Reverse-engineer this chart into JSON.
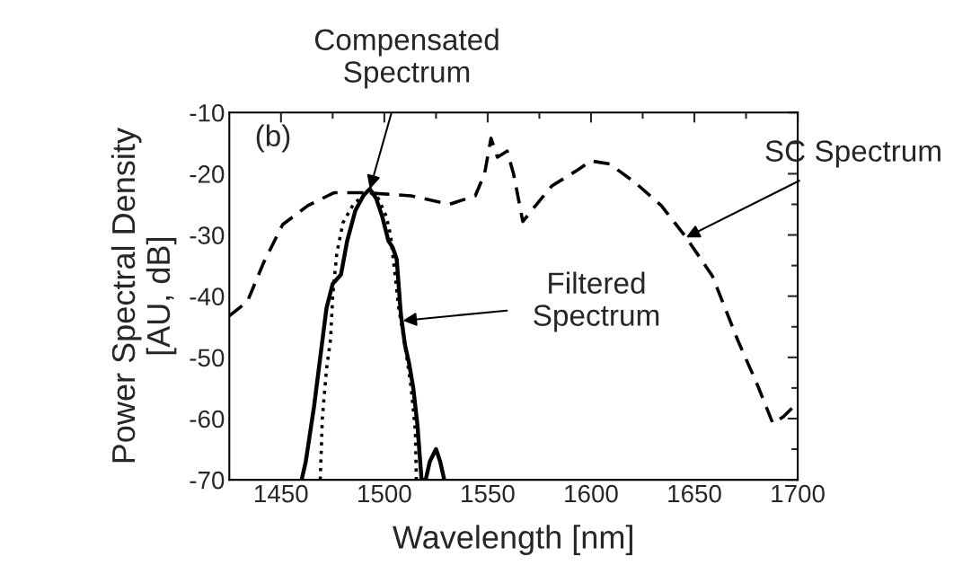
{
  "chart_data": {
    "type": "line",
    "xlabel": "Wavelength [nm]",
    "ylabel": "Power Spectral Density\n[AU, dB]",
    "xlim": [
      1425,
      1700
    ],
    "xticks": [
      1450,
      1500,
      1550,
      1600,
      1650,
      1700
    ],
    "ylim": [
      -70,
      -10
    ],
    "yticks": [
      -70,
      -60,
      -50,
      -40,
      -30,
      -20,
      -10
    ],
    "grid": false,
    "marker": "none",
    "series": [
      {
        "color": "#000000",
        "line_style": "dashed",
        "x": [
          1425,
          1433.7,
          1441.5,
          1450.8,
          1463,
          1475.6,
          1491,
          1512.8,
          1531.5,
          1544,
          1548.5,
          1551.6,
          1554.7,
          1559.4,
          1562.5,
          1567,
          1572,
          1581,
          1593.5,
          1599.8,
          1609,
          1621.5,
          1634,
          1646,
          1658.7,
          1671,
          1680.5,
          1688,
          1693,
          1700
        ],
        "values": [
          -43.2,
          -40.9,
          -34.6,
          -28.3,
          -25.2,
          -23.1,
          -23.1,
          -23.6,
          -25,
          -23.6,
          -20,
          -14.2,
          -17.3,
          -16.3,
          -20,
          -27.8,
          -25.7,
          -22,
          -19.4,
          -17.9,
          -18.4,
          -21.5,
          -25.2,
          -30.4,
          -36.7,
          -47.2,
          -54.5,
          -60.8,
          -59.7,
          -57.4
        ]
      },
      {
        "color": "#000000",
        "line_style": "solid",
        "x": [
          1460,
          1462,
          1466,
          1469,
          1472,
          1475,
          1479,
          1482,
          1486,
          1490,
          1493,
          1496,
          1499,
          1502,
          1504,
          1506,
          1508,
          1510,
          1512,
          1514,
          1516,
          1518,
          1520,
          1522,
          1525,
          1527,
          1529
        ],
        "values": [
          -70,
          -67,
          -58,
          -50,
          -42,
          -38,
          -36.5,
          -31,
          -26,
          -23.5,
          -22.5,
          -24,
          -27,
          -31,
          -32,
          -34,
          -43,
          -48,
          -51,
          -55,
          -61,
          -70,
          -70,
          -67,
          -65,
          -67,
          -70
        ]
      },
      {
        "color": "#000000",
        "line_style": "dotted",
        "x": [
          1469,
          1470,
          1472,
          1474,
          1475,
          1477,
          1480,
          1485,
          1490,
          1493,
          1497,
          1501,
          1503,
          1505,
          1507,
          1510,
          1513,
          1515,
          1515.5
        ],
        "values": [
          -70,
          -60,
          -52,
          -47,
          -40,
          -33,
          -28,
          -25,
          -23.5,
          -23,
          -24,
          -27,
          -30,
          -36,
          -42,
          -48,
          -55,
          -62,
          -70
        ]
      }
    ],
    "annotations": [
      "(b)",
      {
        "text": "Compensated\nSpectrum",
        "x": 1493,
        "y": -22.5
      },
      {
        "text": "SC Spectrum",
        "x": 1646,
        "y": -30.4
      },
      {
        "text": "Filtered\nSpectrum",
        "x": 1509,
        "y": -44
      }
    ]
  }
}
